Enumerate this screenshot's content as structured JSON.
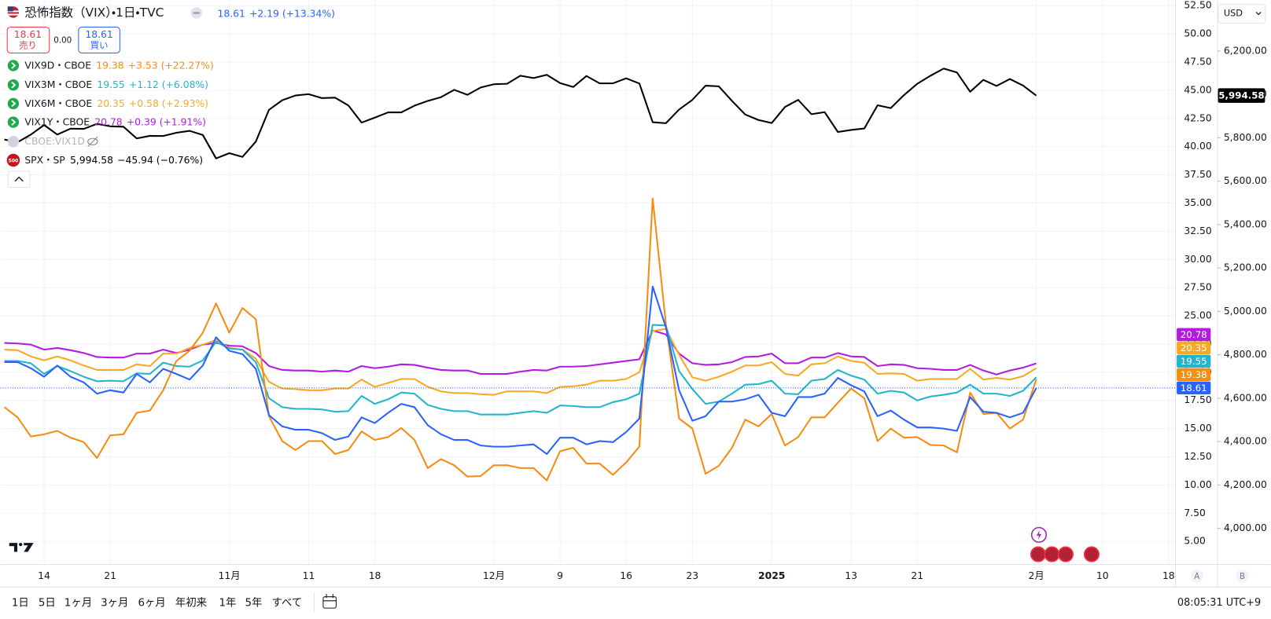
{
  "trade": {
    "sell_price": "18.61",
    "sell_label": "売り",
    "spread": "0.00",
    "buy_price": "18.61",
    "buy_label": "買い"
  },
  "currency": "USD",
  "scale_buttons": [
    "A",
    "B"
  ],
  "toolbar": {
    "ranges": [
      "1日",
      "5日",
      "1ヶ月",
      "3ヶ月",
      "6ヶ月",
      "年初来",
      "1年",
      "5年",
      "すべて"
    ],
    "clock": "08:05:31 UTC+9"
  },
  "chart_data": {
    "type": "line",
    "hidden_series": "CBOE:VIX1D",
    "grid": true,
    "categories": [
      null,
      null,
      null,
      "14",
      null,
      null,
      null,
      null,
      "21",
      null,
      null,
      null,
      null,
      null,
      null,
      null,
      null,
      "11月",
      null,
      null,
      null,
      null,
      null,
      "11",
      null,
      null,
      null,
      null,
      "18",
      null,
      null,
      null,
      null,
      null,
      null,
      null,
      null,
      "12月",
      null,
      null,
      null,
      null,
      "9",
      null,
      null,
      null,
      null,
      "16",
      null,
      null,
      null,
      null,
      "23",
      null,
      null,
      null,
      null,
      null,
      "2025",
      null,
      null,
      null,
      null,
      null,
      "13",
      null,
      null,
      null,
      null,
      "21",
      null,
      null,
      null,
      null,
      null,
      null,
      null,
      null,
      "2月",
      null,
      null,
      null,
      null,
      "10",
      null,
      null,
      null,
      null,
      "18"
    ],
    "ylim": [
      3.0,
      53.0
    ],
    "yticks": [
      {
        "value": 5,
        "label": "5.00"
      },
      {
        "value": 7.5,
        "label": "7.50"
      },
      {
        "value": 10,
        "label": "10.00"
      },
      {
        "value": 12.5,
        "label": "12.50"
      },
      {
        "value": 15,
        "label": "15.00"
      },
      {
        "value": 17.5,
        "label": "17.50"
      },
      {
        "value": 20,
        "label": "20.00"
      },
      {
        "value": 22.5,
        "label": "22.50"
      },
      {
        "value": 25,
        "label": "25.00"
      },
      {
        "value": 27.5,
        "label": "27.50"
      },
      {
        "value": 30,
        "label": "30.00"
      },
      {
        "value": 32.5,
        "label": "32.50"
      },
      {
        "value": 35,
        "label": "35.00"
      },
      {
        "value": 37.5,
        "label": "37.50"
      },
      {
        "value": 40,
        "label": "40.00"
      },
      {
        "value": 42.5,
        "label": "42.50"
      },
      {
        "value": 45,
        "label": "45.00"
      },
      {
        "value": 47.5,
        "label": "47.50"
      },
      {
        "value": 50,
        "label": "50.00"
      },
      {
        "value": 52.5,
        "label": "52.50"
      }
    ],
    "y2lim": [
      3836,
      6435
    ],
    "y2ticks": [
      {
        "value": 4000,
        "label": "4,000.00"
      },
      {
        "value": 4200,
        "label": "4,200.00"
      },
      {
        "value": 4400,
        "label": "4,400.00"
      },
      {
        "value": 4600,
        "label": "4,600.00"
      },
      {
        "value": 4800,
        "label": "4,800.00"
      },
      {
        "value": 5000,
        "label": "5,000.00"
      },
      {
        "value": 5200,
        "label": "5,200.00"
      },
      {
        "value": 5400,
        "label": "5,400.00"
      },
      {
        "value": 5600,
        "label": "5,600.00"
      },
      {
        "value": 5800,
        "label": "5,800.00"
      },
      {
        "value": 6000,
        "label": "6,000.00"
      },
      {
        "value": 6200,
        "label": "6,200.00"
      }
    ],
    "series": [
      {
        "name": "恐怖指数（VIX）・1日・TVC",
        "change": "+2.19 (+13.34%)",
        "color": "#2962ff",
        "values": [
          20.9,
          20.9,
          20.35,
          19.6,
          20.6,
          19.6,
          19.1,
          18.1,
          18.4,
          18.2,
          19.85,
          19.1,
          20.3,
          19.85,
          19.35,
          20.6,
          23.1,
          21.9,
          21.6,
          20.3,
          16.2,
          15.2,
          14.9,
          14.9,
          14.6,
          14.0,
          14.3,
          16.0,
          15.5,
          16.4,
          17.2,
          16.9,
          15.3,
          14.5,
          14.0,
          14.0,
          13.5,
          13.4,
          13.4,
          13.5,
          13.6,
          12.75,
          14.2,
          14.2,
          13.6,
          13.9,
          13.8,
          14.7,
          15.9,
          27.6,
          24.0,
          18.4,
          15.7,
          16.1,
          17.4,
          17.4,
          17.6,
          18.0,
          16.4,
          16.1,
          17.8,
          17.8,
          18.1,
          19.5,
          18.85,
          18.3,
          16.1,
          16.6,
          15.8,
          15.1,
          15.1,
          15.0,
          14.8,
          17.8,
          16.5,
          16.4,
          16.0,
          16.4,
          18.61,
          null,
          null,
          null,
          null,
          null,
          null,
          null,
          null,
          null,
          null
        ]
      },
      {
        "name": "VIX9D・CBOE",
        "change": "+3.53 (+22.27%)",
        "color": "#f68c12",
        "values": [
          16.9,
          16.0,
          14.3,
          14.5,
          14.8,
          14.2,
          13.8,
          12.4,
          14.4,
          14.5,
          16.4,
          16.6,
          18.4,
          21.0,
          21.9,
          23.5,
          26.1,
          23.5,
          25.7,
          24.7,
          16.1,
          13.9,
          13.1,
          13.9,
          13.9,
          12.75,
          13.1,
          14.75,
          14.0,
          14.25,
          15.05,
          14.0,
          11.5,
          12.3,
          11.75,
          10.75,
          10.8,
          11.75,
          11.75,
          11.5,
          11.5,
          10.4,
          13.0,
          13.3,
          11.9,
          11.9,
          10.9,
          12.0,
          13.4,
          35.4,
          24.3,
          15.9,
          15.0,
          11.0,
          11.7,
          13.3,
          15.8,
          15.2,
          16.3,
          13.5,
          14.25,
          16.0,
          16.0,
          17.3,
          18.55,
          17.7,
          13.9,
          15.0,
          14.2,
          14.25,
          13.55,
          13.5,
          12.9,
          18.2,
          16.3,
          16.4,
          15.0,
          15.8,
          19.38,
          null,
          null,
          null,
          null,
          null,
          null,
          null,
          null,
          null,
          null
        ]
      },
      {
        "name": "VIX3M・CBOE",
        "change": "+1.12 (+6.08%)",
        "color": "#22b5cc",
        "values": [
          21.0,
          21.0,
          20.8,
          19.85,
          20.55,
          20.1,
          19.6,
          19.2,
          19.25,
          19.2,
          19.9,
          19.85,
          20.85,
          20.55,
          20.5,
          21.05,
          22.7,
          22.1,
          22.0,
          20.9,
          17.7,
          16.9,
          16.75,
          16.75,
          16.7,
          16.5,
          16.55,
          17.9,
          17.2,
          17.6,
          18.2,
          18.1,
          17.1,
          16.75,
          16.55,
          16.55,
          16.25,
          16.25,
          16.25,
          16.4,
          16.55,
          16.4,
          17.05,
          17.0,
          16.9,
          16.9,
          17.35,
          17.6,
          18.1,
          24.2,
          24.15,
          20.1,
          18.5,
          17.2,
          17.4,
          18.1,
          18.9,
          18.95,
          19.25,
          18.1,
          18.05,
          19.25,
          19.4,
          20.2,
          19.7,
          19.35,
          18.1,
          18.35,
          18.2,
          17.5,
          17.85,
          18.0,
          18.2,
          18.9,
          18.1,
          18.1,
          17.9,
          18.35,
          19.55,
          null,
          null,
          null,
          null,
          null,
          null,
          null,
          null,
          null,
          null
        ]
      },
      {
        "name": "VIX6M・CBOE",
        "change": "+0.58 (+2.93%)",
        "color": "#f9a825",
        "values": [
          22.0,
          21.95,
          21.4,
          21.05,
          21.4,
          21.05,
          20.6,
          20.2,
          20.2,
          20.2,
          20.7,
          20.55,
          21.65,
          21.65,
          22.15,
          22.45,
          22.85,
          22.15,
          22.0,
          21.2,
          19.15,
          18.55,
          18.5,
          18.4,
          18.4,
          18.55,
          18.55,
          19.35,
          18.7,
          19.05,
          19.4,
          19.4,
          18.7,
          18.3,
          18.15,
          18.15,
          18.05,
          18.0,
          18.3,
          18.3,
          18.3,
          18.15,
          18.7,
          18.75,
          18.9,
          19.25,
          19.25,
          19.4,
          20.0,
          23.65,
          23.85,
          21.55,
          19.55,
          19.25,
          19.6,
          20.05,
          20.6,
          20.6,
          20.9,
          19.85,
          19.7,
          20.7,
          20.8,
          21.4,
          21.0,
          20.85,
          19.85,
          19.9,
          19.85,
          19.25,
          19.4,
          19.4,
          19.4,
          20.3,
          19.35,
          19.5,
          19.35,
          19.65,
          20.35,
          null,
          null,
          null,
          null,
          null,
          null,
          null,
          null,
          null,
          null
        ]
      },
      {
        "name": "VIX1Y・CBOE",
        "change": "+0.39 (+1.91%)",
        "color": "#b31be0",
        "values": [
          22.6,
          22.55,
          22.45,
          22.0,
          22.15,
          21.95,
          21.7,
          21.35,
          21.3,
          21.3,
          21.65,
          21.65,
          22.0,
          21.7,
          22.0,
          22.45,
          22.6,
          22.35,
          22.3,
          21.7,
          20.55,
          20.2,
          20.15,
          20.15,
          20.05,
          20.15,
          20.05,
          20.55,
          20.35,
          20.5,
          20.7,
          20.65,
          20.4,
          20.2,
          20.15,
          20.15,
          19.85,
          19.85,
          19.85,
          20.05,
          20.2,
          20.15,
          20.5,
          20.5,
          20.55,
          20.7,
          20.85,
          21.0,
          21.15,
          23.7,
          23.35,
          21.65,
          20.8,
          20.65,
          20.7,
          20.9,
          21.35,
          21.4,
          21.65,
          20.8,
          20.8,
          21.3,
          21.3,
          21.7,
          21.4,
          21.35,
          20.55,
          20.7,
          20.65,
          20.35,
          20.3,
          20.2,
          20.2,
          20.65,
          20.15,
          19.8,
          20.15,
          20.4,
          20.78,
          null,
          null,
          null,
          null,
          null,
          null,
          null,
          null,
          null,
          null
        ]
      },
      {
        "name": "SPX・SP",
        "logo": "500",
        "last_label": "5,994.58",
        "change": "−45.94 (−0.76%)",
        "color": "#000000",
        "axis": "y2",
        "values": [
          5792,
          5780,
          5815,
          5859,
          5815,
          5842,
          5841,
          5864,
          5853,
          5851,
          5797,
          5809,
          5808,
          5823,
          5832,
          5813,
          5705,
          5729,
          5712,
          5782,
          5929,
          5973,
          5995,
          6001,
          5983,
          5985,
          5949,
          5870,
          5893,
          5917,
          5917,
          5948,
          5970,
          5987,
          6021,
          5998,
          6032,
          6047,
          6049,
          6086,
          6075,
          6090,
          6052,
          6034,
          6085,
          6051,
          6051,
          6074,
          6050,
          5872,
          5867,
          5930,
          5975,
          6040,
          6037,
          5970,
          5907,
          5882,
          5868,
          5942,
          5975,
          5909,
          5918,
          5827,
          5836,
          5843,
          5950,
          5937,
          5997,
          6049,
          6086,
          6119,
          6101,
          6012,
          6067,
          6039,
          6071,
          6040.53,
          5994.58,
          null,
          null,
          null,
          null,
          null,
          null,
          null,
          null,
          null,
          null
        ]
      }
    ]
  }
}
